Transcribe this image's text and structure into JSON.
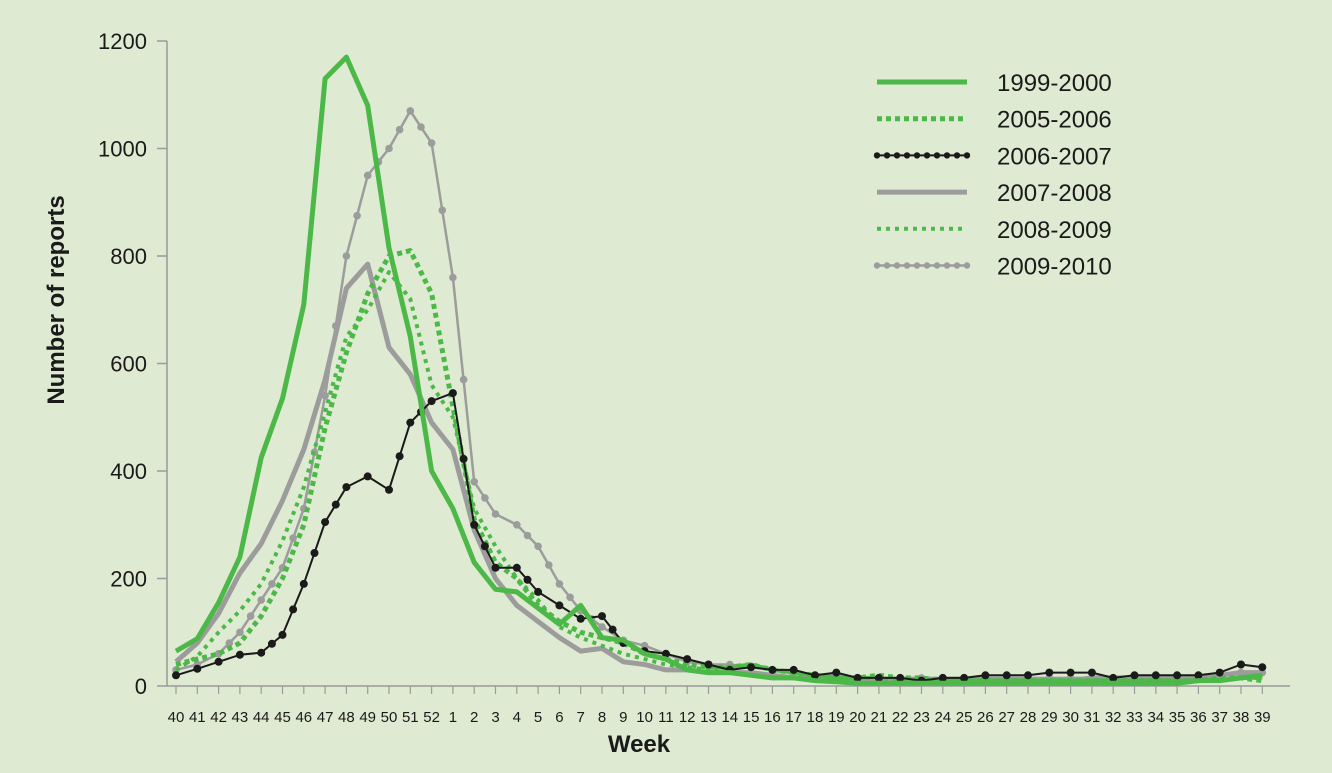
{
  "chart_data": {
    "type": "line",
    "xlabel": "Week",
    "ylabel": "Number of reports",
    "ylim": [
      0,
      1200
    ],
    "yticks": [
      0,
      200,
      400,
      600,
      800,
      1000,
      1200
    ],
    "grid": false,
    "legend_position": "top-right",
    "categories": [
      "40",
      "41",
      "42",
      "43",
      "44",
      "45",
      "46",
      "47",
      "48",
      "49",
      "50",
      "51",
      "52",
      "1",
      "2",
      "3",
      "4",
      "5",
      "6",
      "7",
      "8",
      "9",
      "10",
      "11",
      "12",
      "13",
      "14",
      "15",
      "16",
      "17",
      "18",
      "19",
      "20",
      "21",
      "22",
      "23",
      "24",
      "25",
      "26",
      "27",
      "28",
      "29",
      "30",
      "31",
      "32",
      "33",
      "34",
      "35",
      "36",
      "37",
      "38",
      "39"
    ],
    "series": [
      {
        "name": "1999-2000",
        "style": "solid",
        "width": 5,
        "color": "#4cb848",
        "values": [
          65,
          88,
          155,
          240,
          425,
          535,
          710,
          1130,
          1170,
          1080,
          815,
          650,
          400,
          330,
          230,
          180,
          175,
          145,
          115,
          150,
          90,
          85,
          60,
          50,
          30,
          25,
          25,
          20,
          15,
          15,
          10,
          8,
          5,
          5,
          5,
          5,
          5,
          5,
          5,
          5,
          5,
          5,
          5,
          5,
          5,
          5,
          5,
          5,
          10,
          10,
          15,
          20
        ]
      },
      {
        "name": "2005-2006",
        "style": "dotted-thick",
        "width": 5,
        "color": "#4cb848",
        "values": [
          40,
          50,
          60,
          80,
          130,
          200,
          300,
          480,
          620,
          730,
          800,
          810,
          730,
          520,
          310,
          230,
          200,
          150,
          120,
          100,
          90,
          80,
          60,
          50,
          40,
          35,
          35,
          40,
          30,
          25,
          20,
          15,
          15,
          20,
          15,
          15,
          10,
          10,
          10,
          10,
          10,
          10,
          10,
          10,
          10,
          10,
          10,
          10,
          10,
          15,
          15,
          10
        ]
      },
      {
        "name": "2006-2007",
        "style": "dotted-black",
        "width": 2,
        "color": "#1a1a1a",
        "values": [
          20,
          32,
          45,
          58,
          62,
          95,
          190,
          305,
          370,
          390,
          365,
          490,
          530,
          545,
          300,
          220,
          220,
          175,
          150,
          125,
          130,
          80,
          65,
          60,
          50,
          40,
          30,
          35,
          30,
          30,
          20,
          25,
          15,
          15,
          15,
          10,
          15,
          15,
          20,
          20,
          20,
          25,
          25,
          25,
          15,
          20,
          20,
          20,
          20,
          25,
          40,
          35
        ]
      },
      {
        "name": "2007-2008",
        "style": "solid",
        "width": 5,
        "color": "#9c9c9c",
        "values": [
          45,
          80,
          135,
          210,
          265,
          345,
          440,
          570,
          740,
          785,
          630,
          580,
          490,
          440,
          290,
          200,
          150,
          120,
          90,
          65,
          70,
          45,
          40,
          30,
          30,
          25,
          25,
          25,
          20,
          15,
          15,
          15,
          10,
          10,
          10,
          10,
          10,
          10,
          10,
          10,
          10,
          10,
          10,
          15,
          15,
          15,
          15,
          15,
          15,
          20,
          25,
          25
        ]
      },
      {
        "name": "2008-2009",
        "style": "dotted-thick",
        "width": 4,
        "color": "#4cb848",
        "values": [
          30,
          55,
          100,
          140,
          190,
          270,
          370,
          510,
          650,
          700,
          770,
          720,
          560,
          500,
          330,
          260,
          200,
          160,
          110,
          90,
          75,
          60,
          50,
          40,
          35,
          30,
          35,
          40,
          30,
          25,
          20,
          15,
          15,
          15,
          10,
          10,
          10,
          10,
          10,
          10,
          10,
          10,
          10,
          10,
          10,
          10,
          10,
          10,
          10,
          10,
          15,
          15
        ]
      },
      {
        "name": "2009-2010",
        "style": "dotted-gray",
        "width": 2.5,
        "color": "#9c9c9c",
        "values": [
          30,
          40,
          60,
          100,
          160,
          220,
          330,
          540,
          800,
          950,
          1000,
          1070,
          1010,
          760,
          380,
          320,
          300,
          260,
          190,
          140,
          110,
          85,
          75,
          60,
          45,
          40,
          40,
          35,
          30,
          25,
          20,
          20,
          15,
          15,
          15,
          15,
          15,
          15,
          15,
          15,
          15,
          15,
          15,
          15,
          15,
          15,
          15,
          15,
          15,
          20,
          25,
          25
        ]
      }
    ]
  }
}
